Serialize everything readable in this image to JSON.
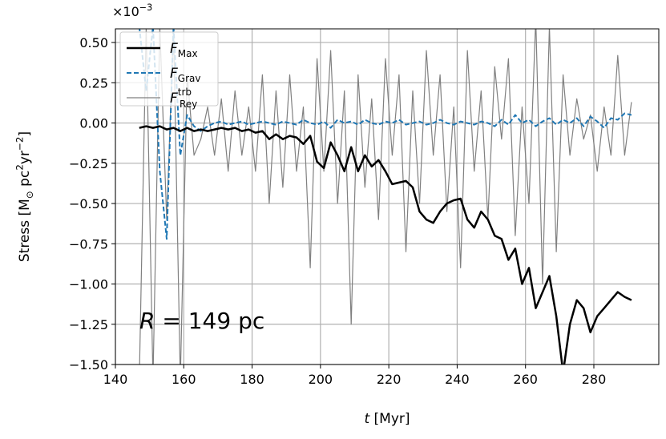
{
  "chart_data": {
    "type": "line",
    "x": [
      147,
      149,
      151,
      153,
      155,
      157,
      159,
      161,
      163,
      165,
      167,
      169,
      171,
      173,
      175,
      177,
      179,
      181,
      183,
      185,
      187,
      189,
      191,
      193,
      195,
      197,
      199,
      201,
      203,
      205,
      207,
      209,
      211,
      213,
      215,
      217,
      219,
      221,
      223,
      225,
      227,
      229,
      231,
      233,
      235,
      237,
      239,
      241,
      243,
      245,
      247,
      249,
      251,
      253,
      255,
      257,
      259,
      261,
      263,
      265,
      267,
      269,
      271,
      273,
      275,
      277,
      279,
      281,
      283,
      285,
      287,
      289,
      291
    ],
    "series": [
      {
        "name": "F",
        "sub": "Max",
        "color": "#000000",
        "linewidth": 2.5,
        "linestyle": "solid",
        "values": [
          -0.03,
          -0.02,
          -0.03,
          -0.02,
          -0.04,
          -0.03,
          -0.05,
          -0.03,
          -0.05,
          -0.04,
          -0.05,
          -0.04,
          -0.03,
          -0.04,
          -0.03,
          -0.05,
          -0.04,
          -0.06,
          -0.05,
          -0.1,
          -0.07,
          -0.1,
          -0.08,
          -0.09,
          -0.13,
          -0.08,
          -0.24,
          -0.28,
          -0.12,
          -0.2,
          -0.3,
          -0.15,
          -0.3,
          -0.2,
          -0.27,
          -0.23,
          -0.3,
          -0.38,
          -0.37,
          -0.36,
          -0.4,
          -0.55,
          -0.6,
          -0.62,
          -0.55,
          -0.5,
          -0.48,
          -0.47,
          -0.6,
          -0.65,
          -0.55,
          -0.6,
          -0.7,
          -0.72,
          -0.85,
          -0.78,
          -1.0,
          -0.9,
          -1.15,
          -1.05,
          -0.95,
          -1.2,
          -1.55,
          -1.25,
          -1.1,
          -1.15,
          -1.3,
          -1.2,
          -1.15,
          -1.1,
          -1.05,
          -1.08,
          -1.1
        ]
      },
      {
        "name": "F",
        "sub": "Grav",
        "color": "#1f77b4",
        "linewidth": 2,
        "linestyle": "dashed",
        "values": [
          0.6,
          0.2,
          0.6,
          -0.3,
          -0.72,
          0.6,
          -0.2,
          0.05,
          -0.02,
          -0.05,
          -0.02,
          0.0,
          0.01,
          -0.01,
          0.0,
          0.01,
          -0.01,
          0.0,
          0.01,
          0.0,
          -0.01,
          0.01,
          0.0,
          -0.01,
          0.02,
          0.0,
          -0.01,
          0.01,
          -0.03,
          0.02,
          0.0,
          0.01,
          -0.01,
          0.02,
          0.0,
          -0.01,
          0.01,
          0.0,
          0.02,
          -0.01,
          0.0,
          0.01,
          -0.01,
          0.0,
          0.02,
          0.0,
          -0.01,
          0.01,
          0.0,
          -0.01,
          0.01,
          0.0,
          -0.02,
          0.02,
          -0.01,
          0.05,
          0.0,
          0.02,
          -0.02,
          0.01,
          0.03,
          -0.01,
          0.02,
          0.0,
          0.03,
          -0.02,
          0.04,
          0.01,
          -0.03,
          0.03,
          0.02,
          0.06,
          0.05
        ]
      },
      {
        "name": "F",
        "sub": "Rey",
        "sup": "trb",
        "color": "#808080",
        "linewidth": 1.2,
        "linestyle": "solid",
        "values": [
          -1.6,
          0.6,
          -1.6,
          0.6,
          -0.6,
          0.6,
          -1.6,
          0.3,
          -0.2,
          -0.1,
          0.1,
          -0.2,
          0.15,
          -0.3,
          0.2,
          -0.2,
          0.1,
          -0.3,
          0.3,
          -0.5,
          0.2,
          -0.4,
          0.3,
          -0.3,
          0.1,
          -0.9,
          0.4,
          -0.3,
          0.45,
          -0.5,
          0.2,
          -1.25,
          0.3,
          -0.4,
          0.15,
          -0.6,
          0.4,
          -0.2,
          0.3,
          -0.8,
          0.2,
          -0.5,
          0.45,
          -0.2,
          0.3,
          -0.55,
          0.1,
          -0.9,
          0.45,
          -0.3,
          0.2,
          -0.6,
          0.35,
          -0.1,
          0.4,
          -0.7,
          0.1,
          -0.5,
          0.65,
          -1.0,
          0.6,
          -0.8,
          0.3,
          -0.2,
          0.15,
          -0.1,
          0.05,
          -0.3,
          0.1,
          -0.2,
          0.42,
          -0.2,
          0.13
        ]
      }
    ],
    "xlim": [
      140,
      299
    ],
    "ylim": [
      -1.5,
      0.585
    ],
    "xticks": [
      140,
      160,
      180,
      200,
      220,
      240,
      260,
      280
    ],
    "yticks": [
      {
        "value": -1.5,
        "label": "−1.50"
      },
      {
        "value": -1.25,
        "label": "−1.25"
      },
      {
        "value": -1.0,
        "label": "−1.00"
      },
      {
        "value": -0.75,
        "label": "−0.75"
      },
      {
        "value": -0.5,
        "label": "−0.50"
      },
      {
        "value": -0.25,
        "label": "−0.25"
      },
      {
        "value": 0,
        "label": "0.00"
      },
      {
        "value": 0.25,
        "label": "0.25"
      },
      {
        "value": 0.5,
        "label": "0.50"
      }
    ],
    "y_multiplier": [
      {
        "text": "×10"
      },
      {
        "text": "−3",
        "shift": "sup"
      }
    ],
    "xlabel": [
      {
        "text": "t",
        "italic": true
      },
      {
        "text": " [Myr]"
      }
    ],
    "ylabel": [
      {
        "text": "Stress [M"
      },
      {
        "text": "⊙",
        "shift": "sub"
      },
      {
        "text": " pc"
      },
      {
        "text": "2",
        "shift": "sup"
      },
      {
        "text": "yr"
      },
      {
        "text": "−2",
        "shift": "sup"
      },
      {
        "text": "]"
      }
    ],
    "annotation": [
      {
        "text": "R",
        "italic": true
      },
      {
        "text": " = 149 pc"
      }
    ],
    "grid": true,
    "legend": "upper left"
  }
}
